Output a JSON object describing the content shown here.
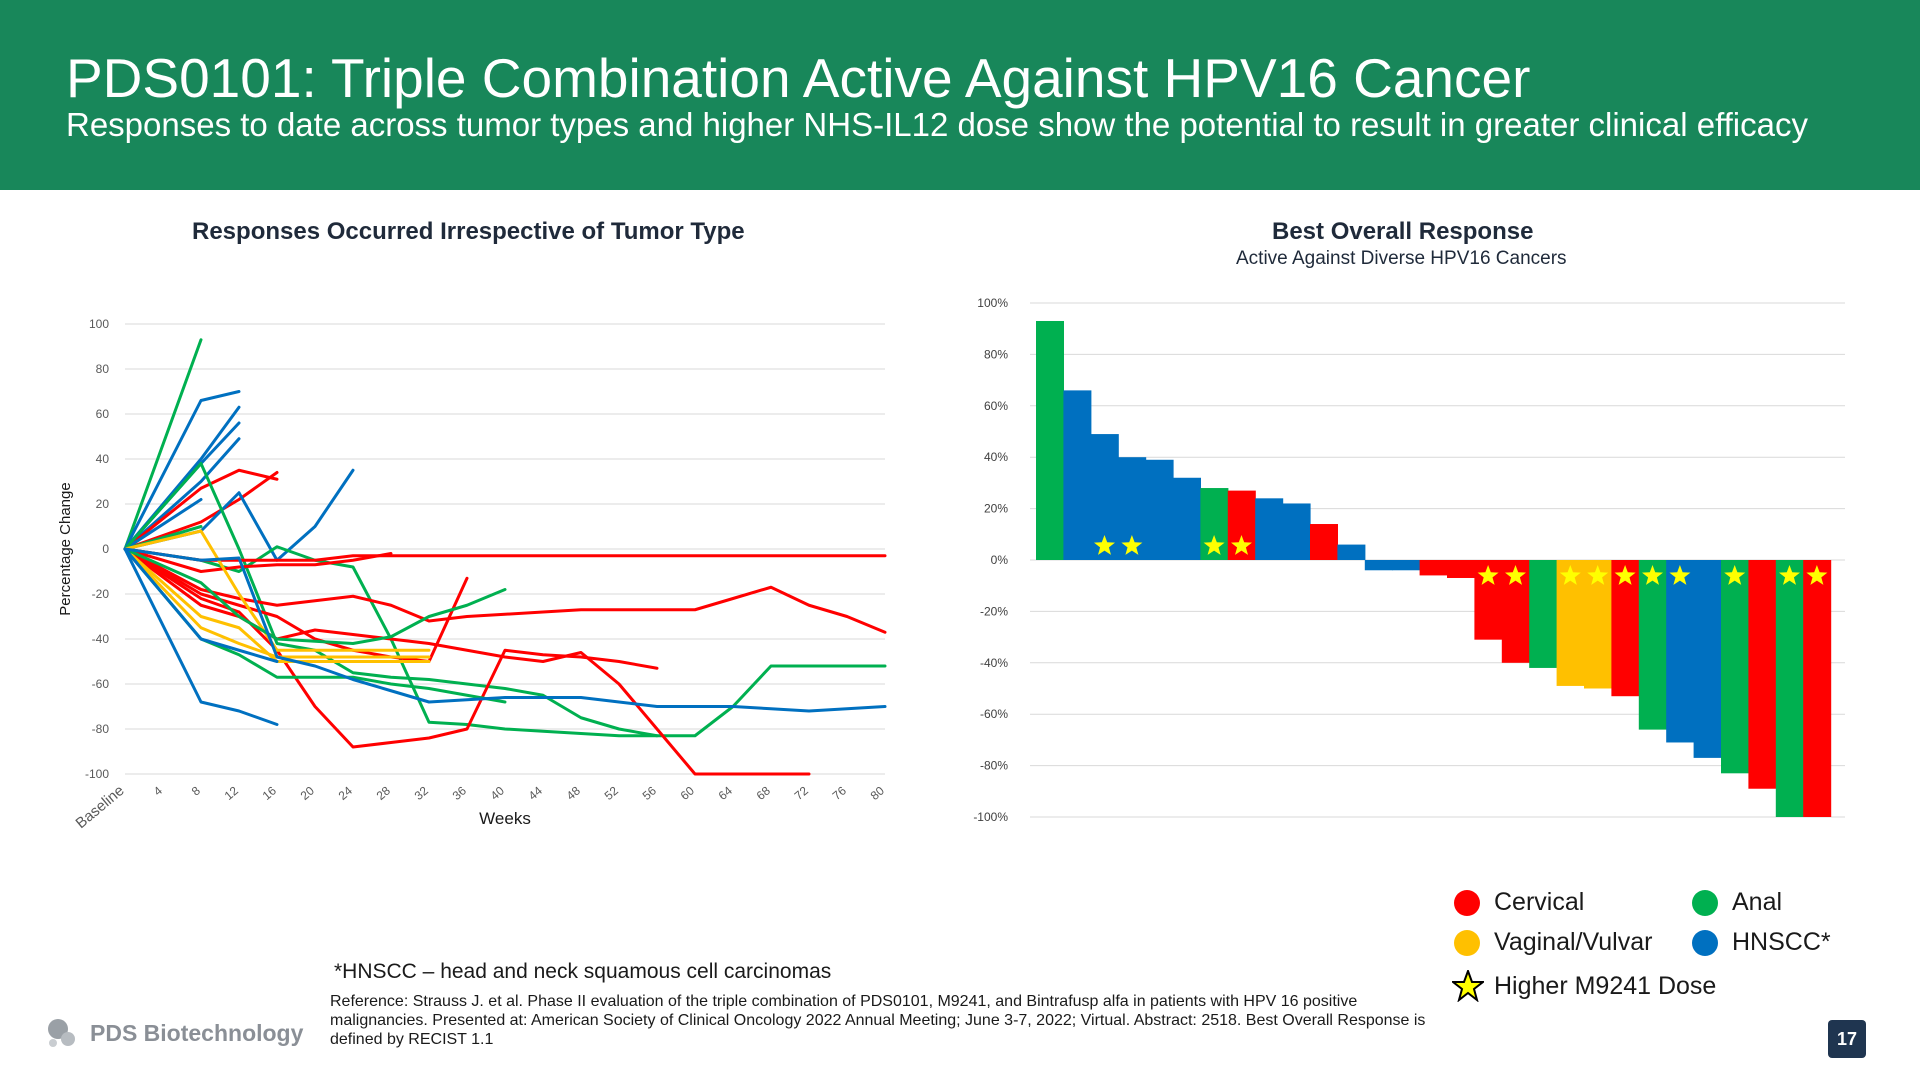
{
  "header": {
    "title": "PDS0101: Triple Combination Active Against HPV16 Cancer",
    "subtitle": "Responses to date across tumor types and higher NHS-IL12 dose show the potential to result in greater clinical efficacy"
  },
  "colors": {
    "header_bg": "#18875a",
    "cervical": "#ff0000",
    "anal": "#00b050",
    "vaginal_vulvar": "#ffc000",
    "hnscc": "#0070c0",
    "star": "#ffff00"
  },
  "chart_data": [
    {
      "type": "line",
      "title": "Responses Occurred Irrespective of Tumor Type",
      "xlabel": "Weeks",
      "ylabel": "Percentage Change",
      "x_ticks": [
        "Baseline",
        "4",
        "8",
        "12",
        "16",
        "20",
        "24",
        "28",
        "32",
        "36",
        "40",
        "44",
        "48",
        "52",
        "56",
        "60",
        "64",
        "68",
        "72",
        "76",
        "80"
      ],
      "y_ticks": [
        "100",
        "80",
        "60",
        "40",
        "20",
        "0",
        "-20",
        "-40",
        "-60",
        "-80",
        "-100"
      ],
      "xlim": [
        0,
        80
      ],
      "ylim": [
        -100,
        100
      ],
      "grid": true,
      "series": [
        {
          "type": "anal",
          "x": [
            0,
            8
          ],
          "y": [
            0,
            93
          ]
        },
        {
          "type": "hnscc",
          "x": [
            0,
            8,
            12
          ],
          "y": [
            0,
            66,
            70
          ]
        },
        {
          "type": "hnscc",
          "x": [
            0,
            8,
            12
          ],
          "y": [
            0,
            40,
            63
          ]
        },
        {
          "type": "hnscc",
          "x": [
            0,
            8,
            12
          ],
          "y": [
            0,
            38,
            56
          ]
        },
        {
          "type": "hnscc",
          "x": [
            0,
            8,
            12
          ],
          "y": [
            0,
            30,
            49
          ]
        },
        {
          "type": "cervical",
          "x": [
            0,
            8,
            12,
            16
          ],
          "y": [
            0,
            27,
            35,
            31
          ]
        },
        {
          "type": "cervical",
          "x": [
            0,
            8,
            12,
            16
          ],
          "y": [
            0,
            12,
            22,
            34
          ]
        },
        {
          "type": "hnscc",
          "x": [
            0,
            8
          ],
          "y": [
            0,
            22
          ]
        },
        {
          "type": "anal",
          "x": [
            0,
            4,
            8
          ],
          "y": [
            0,
            5,
            10
          ]
        },
        {
          "type": "hnscc",
          "x": [
            0,
            8,
            12,
            16,
            20,
            24
          ],
          "y": [
            0,
            8,
            25,
            -5,
            10,
            35
          ]
        },
        {
          "type": "anal",
          "x": [
            0,
            8,
            12,
            16,
            20,
            24,
            28,
            32,
            36,
            40,
            44,
            48,
            52,
            56
          ],
          "y": [
            0,
            38,
            0,
            -42,
            -45,
            -55,
            -57,
            -58,
            -60,
            -62,
            -65,
            -75,
            -80,
            -83
          ]
        },
        {
          "type": "anal",
          "x": [
            0,
            8,
            12,
            16,
            20,
            24,
            28,
            32,
            36,
            40,
            44,
            48,
            52,
            56,
            60,
            64,
            68,
            72,
            76,
            80
          ],
          "y": [
            0,
            -5,
            -10,
            1,
            -5,
            -8,
            -40,
            -77,
            -78,
            -80,
            -81,
            -82,
            -83,
            -83,
            -83,
            -70,
            -52,
            -52,
            -52,
            -52
          ]
        },
        {
          "type": "cervical",
          "x": [
            0,
            8,
            12,
            16,
            20,
            24,
            28,
            32,
            36,
            40,
            44,
            48,
            52,
            56,
            60,
            64,
            68,
            72,
            76,
            80
          ],
          "y": [
            0,
            -5,
            -5,
            -5,
            -5,
            -3,
            -3,
            -3,
            -3,
            -3,
            -3,
            -3,
            -3,
            -3,
            -3,
            -3,
            -3,
            -3,
            -3,
            -3
          ]
        },
        {
          "type": "cervical",
          "x": [
            0,
            8,
            12,
            16,
            20,
            24,
            28
          ],
          "y": [
            0,
            -10,
            -8,
            -7,
            -7,
            -5,
            -2
          ]
        },
        {
          "type": "cervical",
          "x": [
            0,
            8,
            12,
            16,
            20,
            24,
            28,
            32,
            36
          ],
          "y": [
            0,
            -20,
            -25,
            -30,
            -40,
            -45,
            -48,
            -50,
            -13
          ]
        },
        {
          "type": "cervical",
          "x": [
            0,
            8,
            12,
            16,
            20,
            24,
            28,
            32,
            36,
            40,
            44,
            48,
            52,
            56,
            60,
            64,
            68,
            72,
            76,
            80
          ],
          "y": [
            0,
            -18,
            -22,
            -25,
            -23,
            -21,
            -25,
            -32,
            -30,
            -29,
            -28,
            -27,
            -27,
            -27,
            -27,
            -22,
            -17,
            -25,
            -30,
            -37
          ]
        },
        {
          "type": "cervical",
          "x": [
            0,
            8,
            12,
            16,
            20,
            24,
            28,
            32,
            36,
            40,
            44,
            48,
            52,
            56
          ],
          "y": [
            0,
            -22,
            -28,
            -45,
            -70,
            -88,
            -86,
            -84,
            -80,
            -45,
            -47,
            -48,
            -50,
            -53
          ]
        },
        {
          "type": "cervical",
          "x": [
            0,
            8,
            12,
            16,
            20,
            24,
            28,
            32,
            36,
            40,
            44,
            48,
            52,
            56,
            60,
            64,
            68,
            72
          ],
          "y": [
            0,
            -25,
            -30,
            -40,
            -36,
            -38,
            -40,
            -42,
            -45,
            -48,
            -50,
            -46,
            -60,
            -80,
            -100,
            -100,
            -100,
            -100
          ]
        },
        {
          "type": "vaginal_vulvar",
          "x": [
            0,
            8,
            12,
            16,
            20,
            24,
            28,
            32
          ],
          "y": [
            0,
            -35,
            -42,
            -48,
            -48,
            -48,
            -48,
            -48
          ]
        },
        {
          "type": "vaginal_vulvar",
          "x": [
            0,
            8,
            12,
            16,
            20,
            24,
            28,
            32
          ],
          "y": [
            0,
            8,
            -20,
            -45,
            -45,
            -45,
            -45,
            -45
          ]
        },
        {
          "type": "vaginal_vulvar",
          "x": [
            0,
            8,
            12,
            16,
            20,
            24,
            28,
            32
          ],
          "y": [
            0,
            -30,
            -35,
            -50,
            -50,
            -50,
            -50,
            -50
          ]
        },
        {
          "type": "anal",
          "x": [
            0,
            8,
            12,
            16,
            20,
            24,
            28,
            32,
            36,
            40
          ],
          "y": [
            0,
            -40,
            -47,
            -57,
            -57,
            -57,
            -60,
            -62,
            -65,
            -68
          ]
        },
        {
          "type": "anal",
          "x": [
            0,
            8,
            12,
            16,
            20,
            24,
            28,
            32,
            36,
            40
          ],
          "y": [
            0,
            -15,
            -30,
            -40,
            -41,
            -42,
            -39,
            -30,
            -25,
            -18
          ]
        },
        {
          "type": "hnscc",
          "x": [
            0,
            8,
            12,
            16,
            20,
            24,
            28,
            32,
            36,
            40,
            44,
            48,
            52,
            56,
            60,
            64,
            68,
            72,
            76,
            80
          ],
          "y": [
            0,
            -5,
            -4,
            -48,
            -52,
            -58,
            -63,
            -68,
            -67,
            -66,
            -66,
            -66,
            -68,
            -70,
            -70,
            -70,
            -71,
            -72,
            -71,
            -70
          ]
        },
        {
          "type": "hnscc",
          "x": [
            0,
            8,
            12,
            16
          ],
          "y": [
            0,
            -40,
            -45,
            -50
          ]
        },
        {
          "type": "hnscc",
          "x": [
            0,
            8,
            12,
            16
          ],
          "y": [
            0,
            -68,
            -72,
            -78
          ]
        }
      ]
    },
    {
      "type": "bar",
      "title": "Best Overall Response",
      "subtitle": "Active Against Diverse HPV16 Cancers",
      "y_ticks": [
        "100%",
        "80%",
        "60%",
        "40%",
        "20%",
        "0%",
        "-20%",
        "-40%",
        "-60%",
        "-80%",
        "-100%"
      ],
      "ylim": [
        -100,
        100
      ],
      "grid": true,
      "bars": [
        {
          "value": 93,
          "type": "anal",
          "star": false
        },
        {
          "value": 66,
          "type": "hnscc",
          "star": false
        },
        {
          "value": 49,
          "type": "hnscc",
          "star": true
        },
        {
          "value": 40,
          "type": "hnscc",
          "star": true
        },
        {
          "value": 39,
          "type": "hnscc",
          "star": false
        },
        {
          "value": 32,
          "type": "hnscc",
          "star": false
        },
        {
          "value": 28,
          "type": "anal",
          "star": true
        },
        {
          "value": 27,
          "type": "cervical",
          "star": true
        },
        {
          "value": 24,
          "type": "hnscc",
          "star": false
        },
        {
          "value": 22,
          "type": "hnscc",
          "star": false
        },
        {
          "value": 14,
          "type": "cervical",
          "star": false
        },
        {
          "value": 6,
          "type": "hnscc",
          "star": false
        },
        {
          "value": -4,
          "type": "hnscc",
          "star": false
        },
        {
          "value": -4,
          "type": "hnscc",
          "star": false
        },
        {
          "value": -6,
          "type": "cervical",
          "star": false
        },
        {
          "value": -7,
          "type": "cervical",
          "star": false
        },
        {
          "value": -31,
          "type": "cervical",
          "star": true
        },
        {
          "value": -40,
          "type": "cervical",
          "star": true
        },
        {
          "value": -42,
          "type": "anal",
          "star": false
        },
        {
          "value": -49,
          "type": "vaginal_vulvar",
          "star": true
        },
        {
          "value": -50,
          "type": "vaginal_vulvar",
          "star": true
        },
        {
          "value": -53,
          "type": "cervical",
          "star": true
        },
        {
          "value": -66,
          "type": "anal",
          "star": true
        },
        {
          "value": -71,
          "type": "hnscc",
          "star": true
        },
        {
          "value": -77,
          "type": "hnscc",
          "star": false
        },
        {
          "value": -83,
          "type": "anal",
          "star": true
        },
        {
          "value": -89,
          "type": "cervical",
          "star": false
        },
        {
          "value": -100,
          "type": "anal",
          "star": true
        },
        {
          "value": -100,
          "type": "cervical",
          "star": true
        }
      ]
    }
  ],
  "legend": {
    "cervical": "Cervical",
    "anal": "Anal",
    "vaginal_vulvar": "Vaginal/Vulvar",
    "hnscc": "HNSCC*",
    "star": "Higher M9241 Dose"
  },
  "footnote": "*HNSCC – head and neck squamous cell carcinomas",
  "reference": "Reference: Strauss J. et al. Phase II evaluation of the triple combination of PDS0101, M9241, and Bintrafusp alfa in patients with HPV 16 positive malignancies. Presented at: American Society of Clinical Oncology 2022 Annual Meeting; June 3-7, 2022; Virtual. Abstract: 2518. Best Overall Response is defined by RECIST 1.1",
  "logo_text": "PDS Biotechnology",
  "page_number": "17"
}
